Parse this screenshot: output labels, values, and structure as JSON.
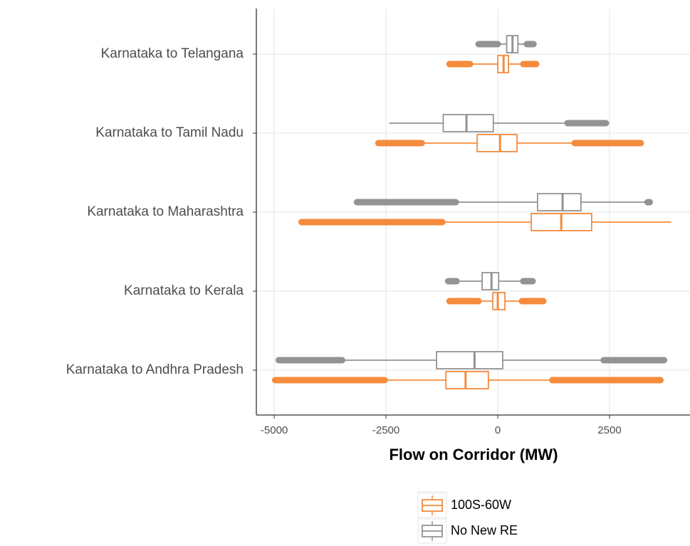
{
  "chart_data": {
    "type": "boxplot",
    "x_label": "Flow on Corridor (MW)",
    "categories": [
      "Karnataka to Telangana",
      "Karnataka to Tamil Nadu",
      "Karnataka to Maharashtra",
      "Karnataka to Kerala",
      "Karnataka to Andhra Pradesh"
    ],
    "xlim": [
      -5400,
      4300
    ],
    "xticks": [
      -5000,
      -2500,
      0,
      2500
    ],
    "grid": true,
    "legend": "bottom",
    "series": [
      {
        "name": "100S-60W",
        "color": "#f58b3c",
        "outlier_min": [
          -1080,
          -2670,
          -4390,
          -1080,
          -4980
        ],
        "whisker_low": [
          -620,
          -1700,
          -1240,
          -430,
          -2530
        ],
        "q1": [
          0,
          -460,
          750,
          -110,
          -1160
        ],
        "median": [
          130,
          50,
          1420,
          0,
          -720
        ],
        "q3": [
          240,
          430,
          2100,
          160,
          -210
        ],
        "whisker_high": [
          570,
          1720,
          3880,
          540,
          1220
        ],
        "outlier_max": [
          860,
          3200,
          null,
          1020,
          3640
        ]
      },
      {
        "name": "No New RE",
        "color": "#939393",
        "outlier_min": [
          -430,
          null,
          -3150,
          -1110,
          -4900
        ],
        "whisker_low": [
          0,
          -2430,
          -940,
          -920,
          -3480
        ],
        "q1": [
          200,
          -1220,
          890,
          -350,
          -1370
        ],
        "median": [
          330,
          -700,
          1450,
          -140,
          -520
        ],
        "q3": [
          450,
          -100,
          1860,
          20,
          110
        ],
        "whisker_high": [
          650,
          1560,
          3350,
          570,
          2370
        ],
        "outlier_max": [
          800,
          2420,
          3400,
          780,
          3720
        ]
      }
    ]
  }
}
